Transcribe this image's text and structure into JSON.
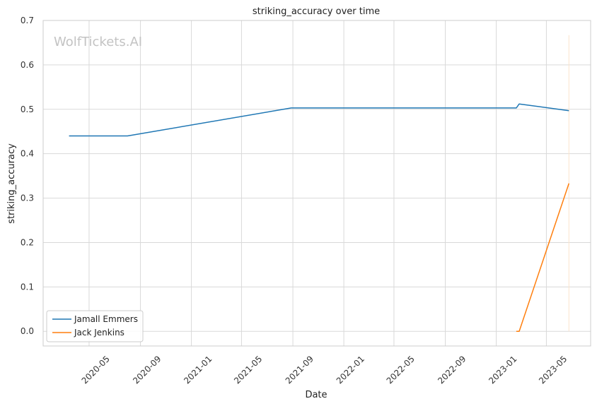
{
  "chart_data": {
    "type": "line",
    "title": "striking_accuracy over time",
    "xlabel": "Date",
    "ylabel": "striking_accuracy",
    "watermark": "WolfTickets.AI",
    "xlim": [
      "2020-01-12",
      "2023-08-15"
    ],
    "ylim": [
      -0.033,
      0.7
    ],
    "yticks": [
      0.0,
      0.1,
      0.2,
      0.3,
      0.4,
      0.5,
      0.6,
      0.7
    ],
    "ytick_labels": [
      "0.0",
      "0.1",
      "0.2",
      "0.3",
      "0.4",
      "0.5",
      "0.6",
      "0.7"
    ],
    "xticks": [
      "2020-05-01",
      "2020-09-01",
      "2021-01-01",
      "2021-05-01",
      "2021-09-01",
      "2022-01-01",
      "2022-05-01",
      "2022-09-01",
      "2023-01-01",
      "2023-05-01"
    ],
    "xtick_labels": [
      "2020-05",
      "2020-09",
      "2021-01",
      "2021-05",
      "2021-09",
      "2022-01",
      "2022-05",
      "2022-09",
      "2023-01",
      "2023-05"
    ],
    "grid": true,
    "legend_position": "lower-left",
    "series": [
      {
        "name": "Jamall Emmers",
        "color": "#1f77b4",
        "x": [
          "2020-03-14",
          "2020-08-01",
          "2021-08-28",
          "2023-02-18",
          "2023-02-25",
          "2023-06-24"
        ],
        "y": [
          0.44,
          0.44,
          0.503,
          0.503,
          0.512,
          0.497
        ]
      },
      {
        "name": "Jack Jenkins",
        "color": "#ff7f0e",
        "x": [
          "2023-02-18",
          "2023-02-25",
          "2023-06-24"
        ],
        "y": [
          0.0,
          0.0,
          0.333
        ]
      }
    ],
    "vertical_marker": {
      "x": "2023-06-24",
      "y_range": [
        0.0,
        0.667
      ],
      "color": "#fbe3cc"
    }
  }
}
